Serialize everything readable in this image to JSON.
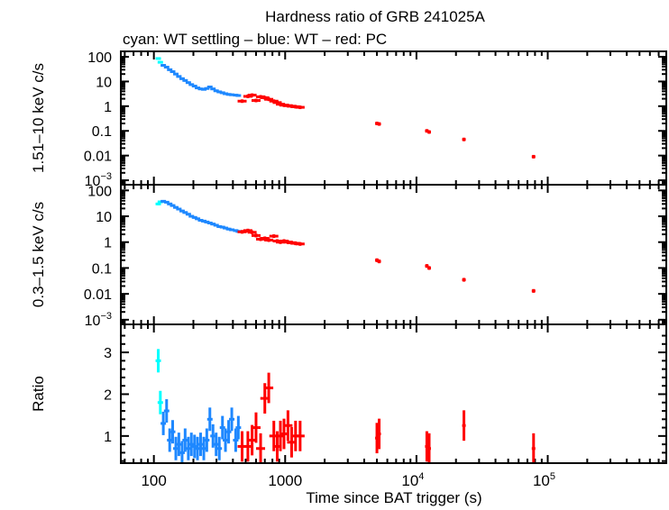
{
  "chart_data": {
    "type": "scatter",
    "title": "Hardness ratio of GRB 241025A",
    "subtitle": "cyan: WT settling – blue: WT – red: PC",
    "xlabel": "Time since BAT trigger (s)",
    "xscale": "log",
    "xlim": [
      56,
      800000
    ],
    "x_ticks": [
      {
        "v": 100,
        "label": "100"
      },
      {
        "v": 1000,
        "label": "1000"
      },
      {
        "v": 10000,
        "label": "10",
        "sup": "4"
      },
      {
        "v": 100000,
        "label": "10",
        "sup": "5"
      }
    ],
    "colors": {
      "wt_settling": "#00ffff",
      "wt": "#1e88ff",
      "pc": "#ff0000"
    },
    "panels": [
      {
        "key": "hard",
        "ylabel": "1.51–10 keV c/s",
        "yscale": "log",
        "ylim": [
          0.00066,
          166
        ],
        "y_ticks": [
          {
            "v": 100,
            "label": "100"
          },
          {
            "v": 10,
            "label": "10"
          },
          {
            "v": 1,
            "label": "1"
          },
          {
            "v": 0.1,
            "label": "0.1"
          },
          {
            "v": 0.01,
            "label": "0.01"
          },
          {
            "v": 0.001,
            "label": "10",
            "sup": "−3"
          }
        ]
      },
      {
        "key": "soft",
        "ylabel": "0.3–1.5 keV c/s",
        "yscale": "log",
        "ylim": [
          0.00066,
          166
        ],
        "y_ticks": [
          {
            "v": 100,
            "label": "100"
          },
          {
            "v": 10,
            "label": "10"
          },
          {
            "v": 1,
            "label": "1"
          },
          {
            "v": 0.1,
            "label": "0.1"
          },
          {
            "v": 0.01,
            "label": "0.01"
          },
          {
            "v": 0.001,
            "label": "10",
            "sup": "−3"
          }
        ]
      },
      {
        "key": "ratio",
        "ylabel": "Ratio",
        "yscale": "linear",
        "ylim": [
          0.35,
          3.67
        ],
        "y_ticks": [
          {
            "v": 1,
            "label": "1"
          },
          {
            "v": 2,
            "label": "2"
          },
          {
            "v": 3,
            "label": "3"
          }
        ]
      }
    ],
    "series": [
      {
        "mode": "wt_settling",
        "t": [
          108,
          112
        ],
        "hard": [
          85,
          60
        ],
        "soft": [
          30,
          36
        ],
        "ratio": [
          2.8,
          1.8
        ]
      },
      {
        "mode": "wt",
        "t": [
          118,
          125,
          132,
          139,
          147,
          155,
          164,
          173,
          183,
          193,
          204,
          215,
          227,
          240,
          253,
          267,
          282,
          298,
          315,
          333,
          351,
          371,
          392,
          420,
          440
        ],
        "hard": [
          45,
          38,
          30,
          25,
          20,
          16,
          13,
          11,
          9,
          7.5,
          6.5,
          5.5,
          5,
          4.8,
          5.2,
          6,
          5,
          4.2,
          3.8,
          3.5,
          3.2,
          3.0,
          2.9,
          2.8,
          2.7
        ],
        "soft": [
          38,
          35,
          30,
          26,
          22,
          19,
          16,
          14,
          12,
          10,
          9,
          8,
          7,
          6.5,
          6,
          5.5,
          5,
          4.5,
          4,
          3.8,
          3.5,
          3.2,
          3,
          2.8,
          2.6
        ],
        "ratio": [
          1.3,
          1.6,
          0.9,
          1.1,
          0.7,
          0.8,
          0.6,
          0.9,
          0.7,
          0.8,
          0.75,
          0.7,
          0.8,
          0.7,
          0.9,
          1.4,
          1.0,
          0.8,
          0.7,
          1.2,
          0.9,
          1.1,
          1.4,
          0.9,
          1.2
        ]
      },
      {
        "mode": "pc",
        "t": [
          470,
          520,
          560,
          600,
          650,
          700,
          750,
          820,
          870,
          920,
          980,
          1050,
          1120,
          1200,
          1300,
          5000,
          5200,
          12000,
          12500,
          23000,
          78000
        ],
        "hard": [
          1.6,
          2.5,
          2.8,
          1.7,
          2.4,
          2.2,
          1.9,
          1.6,
          1.4,
          1.2,
          1.1,
          1.05,
          1.0,
          0.95,
          0.9,
          0.2,
          0.19,
          0.1,
          0.09,
          0.045,
          0.009
        ],
        "soft": [
          2.5,
          2.8,
          2.4,
          1.8,
          1.3,
          1.4,
          1.2,
          1.7,
          1.1,
          1.0,
          1.1,
          1.0,
          0.95,
          0.9,
          0.85,
          0.2,
          0.18,
          0.12,
          0.1,
          0.035,
          0.013
        ],
        "ratio": [
          0.75,
          0.75,
          0.9,
          1.2,
          0.7,
          1.9,
          2.15,
          1.0,
          0.75,
          1.0,
          1.05,
          1.25,
          0.85,
          1.0,
          1.0,
          0.95,
          1.05,
          0.75,
          0.7,
          1.25,
          0.7
        ]
      }
    ]
  }
}
